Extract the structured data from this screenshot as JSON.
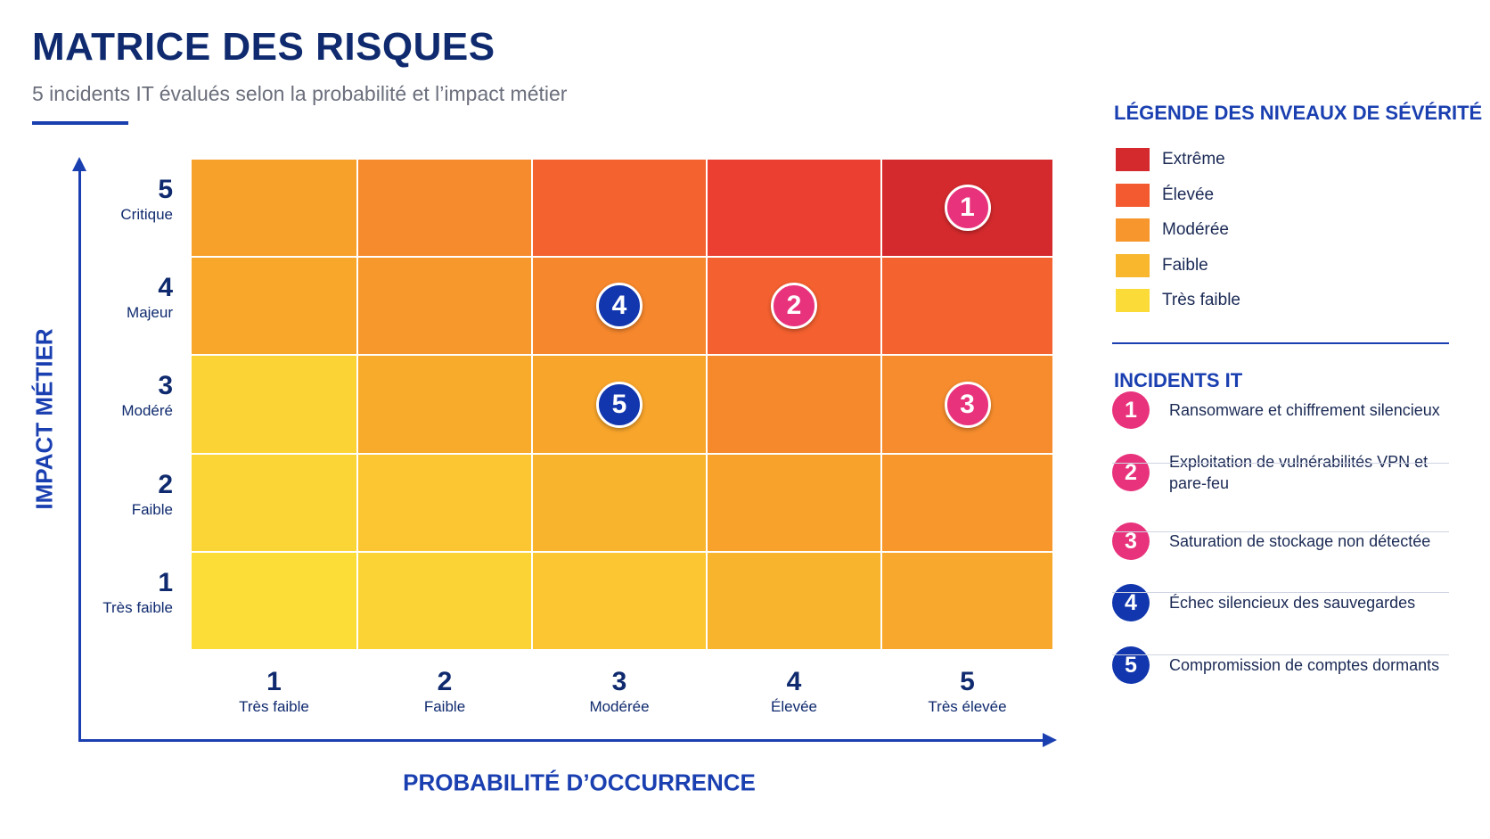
{
  "header": {
    "title": "MATRICE DES RISQUES",
    "subtitle": "5 incidents IT évalués selon la probabilité et l’impact métier"
  },
  "chart_data": {
    "type": "heatmap",
    "title": "MATRICE DES RISQUES",
    "subtitle": "5 incidents IT évalués selon la probabilité et l’impact métier",
    "xlabel": "PROBABILITÉ D’OCCURRENCE",
    "ylabel": "IMPACT MÉTIER",
    "x_ticks": [
      {
        "num": "1",
        "label": "Très faible"
      },
      {
        "num": "2",
        "label": "Faible"
      },
      {
        "num": "3",
        "label": "Modérée"
      },
      {
        "num": "4",
        "label": "Élevée"
      },
      {
        "num": "5",
        "label": "Très élevée"
      }
    ],
    "y_ticks": [
      {
        "num": "5",
        "label": "Critique"
      },
      {
        "num": "4",
        "label": "Majeur"
      },
      {
        "num": "3",
        "label": "Modéré"
      },
      {
        "num": "2",
        "label": "Faible"
      },
      {
        "num": "1",
        "label": "Très faible"
      }
    ],
    "cell_colors_rows_top_to_bottom": [
      [
        "#f7a12b",
        "#f68b2e",
        "#f4622f",
        "#ea3f31",
        "#d42a2d"
      ],
      [
        "#f9a72b",
        "#f7982d",
        "#f6872d",
        "#f4602f",
        "#f4622f"
      ],
      [
        "#fbd335",
        "#f8ab2a",
        "#f8a52b",
        "#f6892c",
        "#f68c2d"
      ],
      [
        "#fbd535",
        "#fbc631",
        "#f9b42e",
        "#f8a12b",
        "#f8982c"
      ],
      [
        "#fcdd38",
        "#fbd334",
        "#fbc631",
        "#f9b42e",
        "#f8a82c"
      ]
    ],
    "points": [
      {
        "id": "1",
        "probability": 5,
        "impact": 5,
        "color": "#e8337c"
      },
      {
        "id": "2",
        "probability": 4,
        "impact": 4,
        "color": "#e8337c"
      },
      {
        "id": "3",
        "probability": 5,
        "impact": 3,
        "color": "#e8337c"
      },
      {
        "id": "4",
        "probability": 3,
        "impact": 4,
        "color": "#1136ad"
      },
      {
        "id": "5",
        "probability": 3,
        "impact": 3,
        "color": "#1136ad"
      }
    ]
  },
  "severity_legend": {
    "title": "LÉGENDE DES NIVEAUX DE SÉVÉRITÉ",
    "items": [
      {
        "label": "Extrême",
        "color": "#d42a2d"
      },
      {
        "label": "Élevée",
        "color": "#f45a2f"
      },
      {
        "label": "Modérée",
        "color": "#f7962d"
      },
      {
        "label": "Faible",
        "color": "#f9b72d"
      },
      {
        "label": "Très faible",
        "color": "#fbdb38"
      }
    ]
  },
  "incidents": {
    "title": "INCIDENTS IT",
    "items": [
      {
        "num": "1",
        "label": "Ransomware et chiffrement silencieux",
        "color": "#e8337c"
      },
      {
        "num": "2",
        "label": "Exploitation de vulnérabilités VPN et pare-feu",
        "color": "#e8337c"
      },
      {
        "num": "3",
        "label": "Saturation de stockage non détectée",
        "color": "#e8337c"
      },
      {
        "num": "4",
        "label": "Échec silencieux des sauvegardes",
        "color": "#1136ad"
      },
      {
        "num": "5",
        "label": "Compromission de comptes dormants",
        "color": "#1136ad"
      }
    ]
  }
}
